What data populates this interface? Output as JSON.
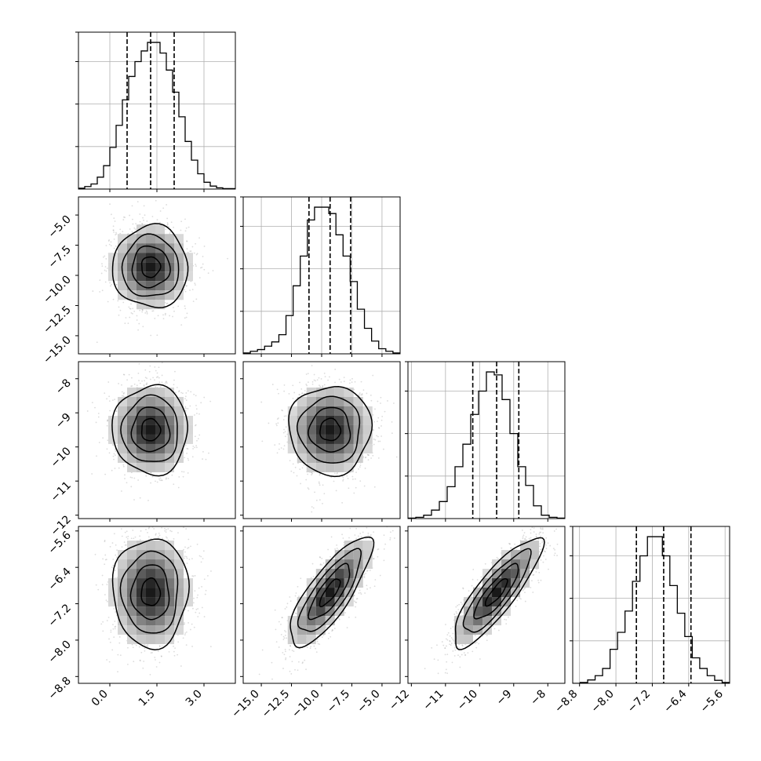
{
  "chart_data": {
    "type": "corner",
    "n_params": 4,
    "params": [
      {
        "range": [
          -1.0,
          4.0
        ],
        "ticks": [
          0.0,
          1.5,
          3.0
        ],
        "tick_labels": [
          "0.0",
          "1.5",
          "3.0"
        ],
        "quantiles": [
          0.55,
          1.3,
          2.05
        ],
        "median": 1.3,
        "sd": 0.6
      },
      {
        "range": [
          -16.5,
          -3.5
        ],
        "ticks": [
          -15.0,
          -12.5,
          -10.0,
          -7.5,
          -5.0
        ],
        "tick_labels": [
          "−15.0",
          "−12.5",
          "−10.0",
          "−7.5",
          "−5.0"
        ],
        "quantiles": [
          -11.05,
          -9.3,
          -7.6
        ],
        "median": -9.3,
        "sd": 1.7
      },
      {
        "range": [
          -12.1,
          -7.5
        ],
        "ticks": [
          -12,
          -11,
          -10,
          -9,
          -8
        ],
        "tick_labels": [
          "−12",
          "−11",
          "−10",
          "−9",
          "−8"
        ],
        "quantiles": [
          -10.2,
          -9.5,
          -8.85
        ],
        "median": -9.5,
        "sd": 0.65
      },
      {
        "range": [
          -8.95,
          -5.5
        ],
        "ticks": [
          -8.8,
          -8.0,
          -7.2,
          -6.4,
          -5.6
        ],
        "tick_labels": [
          "−8.8",
          "−8.0",
          "−7.2",
          "−6.4",
          "−5.6"
        ],
        "quantiles": [
          -7.55,
          -6.95,
          -6.35
        ],
        "median": -6.95,
        "sd": 0.6
      }
    ],
    "histograms": [
      {
        "bins": [
          -1.0,
          4.0
        ],
        "counts": [
          2,
          6,
          12,
          28,
          55,
          98,
          150,
          210,
          265,
          300,
          325,
          345,
          345,
          320,
          280,
          228,
          170,
          112,
          68,
          36,
          16,
          7,
          3,
          1,
          1
        ]
      },
      {
        "bins": [
          -16.5,
          -3.5
        ],
        "counts": [
          2,
          6,
          10,
          18,
          28,
          45,
          90,
          160,
          230,
          315,
          345,
          345,
          330,
          280,
          230,
          170,
          105,
          60,
          30,
          12,
          6,
          2
        ]
      },
      {
        "bins": [
          -12.1,
          -7.5
        ],
        "counts": [
          1,
          3,
          8,
          20,
          40,
          75,
          122,
          175,
          245,
          300,
          345,
          338,
          280,
          200,
          122,
          78,
          30,
          8,
          3,
          1
        ]
      },
      {
        "bins": [
          -8.95,
          -5.5
        ],
        "counts": [
          0,
          2,
          8,
          18,
          35,
          80,
          120,
          170,
          240,
          300,
          345,
          345,
          300,
          230,
          165,
          110,
          60,
          35,
          18,
          7,
          2
        ]
      }
    ],
    "correlations": [
      [
        1.0,
        0.0,
        0.0,
        0.0
      ],
      [
        0.0,
        1.0,
        0.0,
        0.8
      ],
      [
        0.0,
        0.0,
        1.0,
        0.85
      ],
      [
        0.0,
        0.8,
        0.85,
        1.0
      ]
    ],
    "grid": true,
    "quantile_lines": "dashed"
  }
}
